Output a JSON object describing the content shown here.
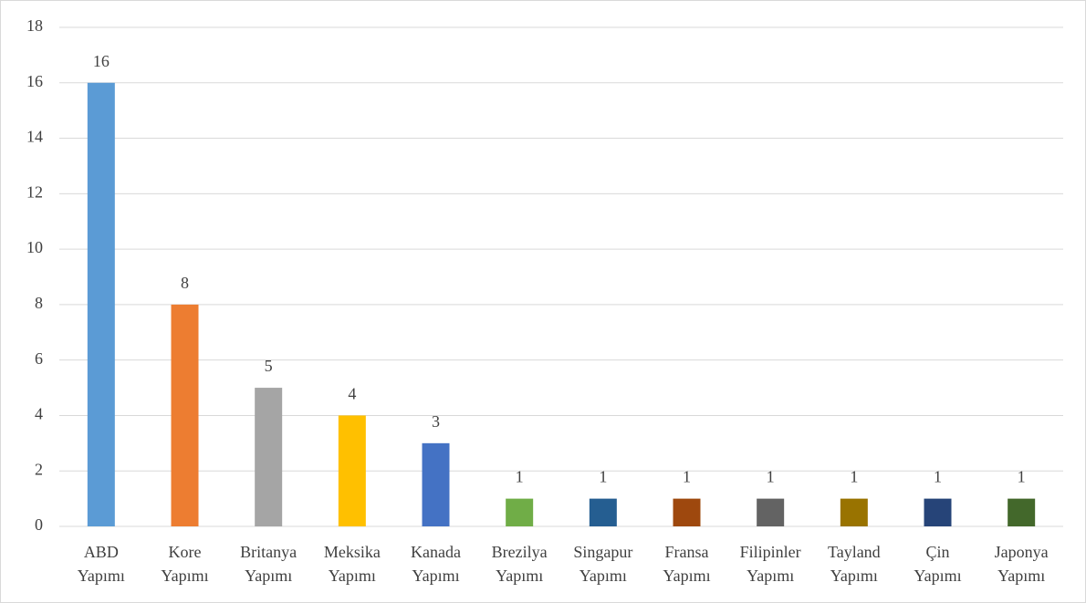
{
  "chart_data": {
    "type": "bar",
    "categories": [
      "ABD Yapımı",
      "Kore Yapımı",
      "Britanya Yapımı",
      "Meksika Yapımı",
      "Kanada Yapımı",
      "Brezilya Yapımı",
      "Singapur Yapımı",
      "Fransa Yapımı",
      "Filipinler Yapımı",
      "Tayland Yapımı",
      "Çin Yapımı",
      "Japonya Yapımı"
    ],
    "values": [
      16,
      8,
      5,
      4,
      3,
      1,
      1,
      1,
      1,
      1,
      1,
      1
    ],
    "colors": [
      "#5b9bd5",
      "#ed7d31",
      "#a5a5a5",
      "#ffc000",
      "#4472c4",
      "#70ad47",
      "#255e91",
      "#9e480e",
      "#636363",
      "#997300",
      "#264478",
      "#43682b"
    ],
    "ylim": [
      0,
      18
    ],
    "yticks": [
      0,
      2,
      4,
      6,
      8,
      10,
      12,
      14,
      16,
      18
    ],
    "grid": true
  }
}
